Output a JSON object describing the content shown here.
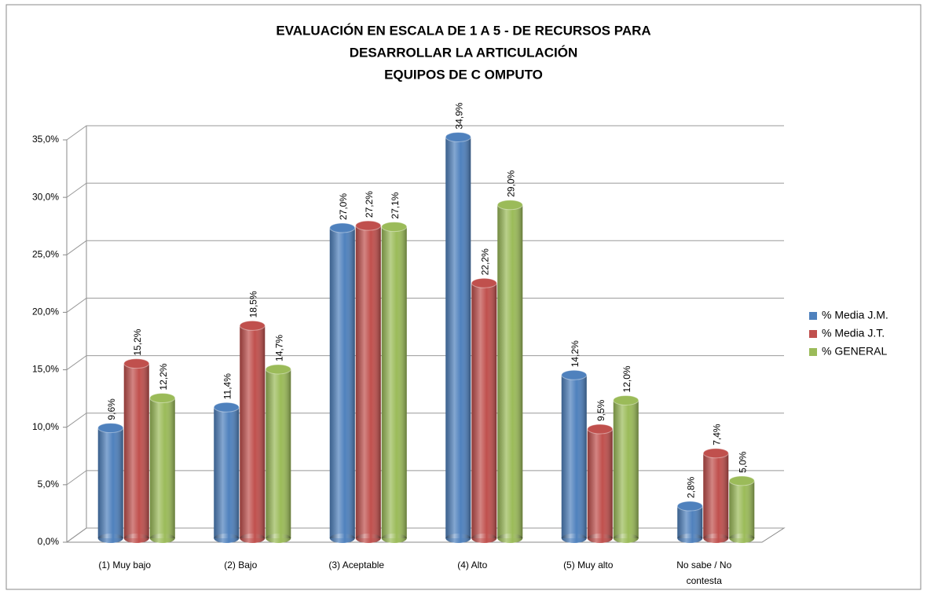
{
  "chart_data": {
    "type": "bar3d",
    "title": [
      "EVALUACIÓN EN ESCALA DE 1 A 5 - DE RECURSOS PARA",
      "DESARROLLAR LA ARTICULACIÓN",
      "EQUIPOS DE C OMPUTO"
    ],
    "categories": [
      "(1) Muy bajo",
      "(2) Bajo",
      "(3) Aceptable",
      "(4) Alto",
      "(5) Muy alto",
      "No sabe / No contesta"
    ],
    "series": [
      {
        "name": "% Media J.M.",
        "color": "#4f81bd",
        "values": [
          9.6,
          11.4,
          27.0,
          34.9,
          14.2,
          2.8
        ],
        "value_labels": [
          "9,6%",
          "11,4%",
          "27,0%",
          "34,9%",
          "14,2%",
          "2,8%"
        ]
      },
      {
        "name": "% Media J.T.",
        "color": "#c0504d",
        "values": [
          15.2,
          18.5,
          27.2,
          22.2,
          9.5,
          7.4
        ],
        "value_labels": [
          "15,2%",
          "18,5%",
          "27,2%",
          "22,2%",
          "9,5%",
          "7,4%"
        ]
      },
      {
        "name": "% GENERAL",
        "color": "#9bbb59",
        "values": [
          12.2,
          14.7,
          27.1,
          29.0,
          12.0,
          5.0
        ],
        "value_labels": [
          "12,2%",
          "14,7%",
          "27,1%",
          "29,0%",
          "12,0%",
          "5,0%"
        ]
      }
    ],
    "ylim": [
      0,
      35
    ],
    "yticks": [
      {
        "value": 0,
        "label": "0,0%"
      },
      {
        "value": 5,
        "label": "5,0%"
      },
      {
        "value": 10,
        "label": "10,0%"
      },
      {
        "value": 15,
        "label": "15,0%"
      },
      {
        "value": 20,
        "label": "20,0%"
      },
      {
        "value": 25,
        "label": "25,0%"
      },
      {
        "value": 30,
        "label": "30,0%"
      },
      {
        "value": 35,
        "label": "35,0%"
      }
    ],
    "grid": true,
    "legend": "right"
  }
}
